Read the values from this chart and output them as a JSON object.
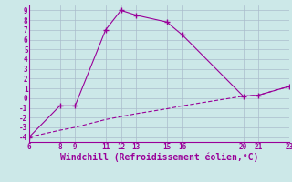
{
  "line1_x": [
    6,
    8,
    9,
    11,
    12,
    13,
    15,
    16,
    20,
    21,
    23
  ],
  "line1_y": [
    -4,
    -0.8,
    -0.8,
    7.0,
    9.0,
    8.5,
    7.8,
    6.5,
    0.2,
    0.3,
    1.2
  ],
  "line2_x": [
    6,
    8,
    9,
    11,
    12,
    13,
    15,
    16,
    20,
    21,
    23
  ],
  "line2_y": [
    -4.0,
    -3.3,
    -3.0,
    -2.2,
    -1.9,
    -1.6,
    -1.1,
    -0.8,
    0.2,
    0.3,
    1.2
  ],
  "line_color": "#990099",
  "bg_color": "#cce8e8",
  "grid_color": "#aabccc",
  "xlabel": "Windchill (Refroidissement éolien,°C)",
  "xlim": [
    6,
    23
  ],
  "ylim": [
    -4.5,
    9.5
  ],
  "xticks": [
    6,
    8,
    9,
    11,
    12,
    13,
    15,
    16,
    20,
    21,
    23
  ],
  "yticks": [
    -4,
    -3,
    -2,
    -1,
    0,
    1,
    2,
    3,
    4,
    5,
    6,
    7,
    8,
    9
  ],
  "tick_fontsize": 5.5,
  "xlabel_fontsize": 7.0
}
